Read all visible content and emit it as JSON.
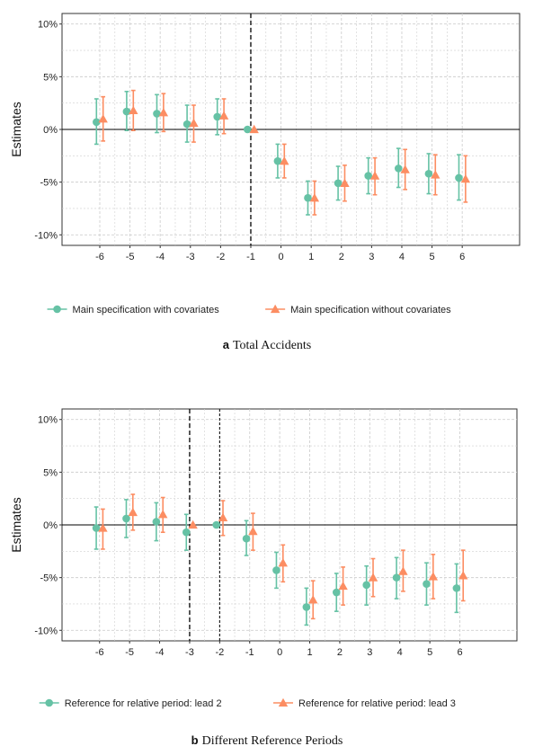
{
  "colors": {
    "series1": "#66c2a5",
    "series2": "#fc8d62",
    "grid": "#d0d0d0",
    "zero": "#000000",
    "reference": "#000000"
  },
  "chart_data": [
    {
      "type": "scatter",
      "panel_letter": "a",
      "caption": "Total Accidents",
      "ylabel": "Estimates",
      "xlabel": "",
      "x": [
        -6,
        -5,
        -4,
        -3,
        -2,
        -1,
        0,
        1,
        2,
        3,
        4,
        5,
        6
      ],
      "xlim": [
        -7.25,
        7.9
      ],
      "ylim": [
        -11,
        11
      ],
      "yticks": [
        -10,
        -5,
        0,
        5,
        10
      ],
      "ytick_labels": [
        "-10%",
        "-5%",
        "0%",
        "5%",
        "10%"
      ],
      "xtick_labels": [
        "-6",
        "-5",
        "-4",
        "-3",
        "-2",
        "-1",
        "0",
        "1",
        "2",
        "3",
        "4",
        "5",
        "6"
      ],
      "grid": true,
      "legend_position": "bottom",
      "reference_lines": [
        -1
      ],
      "series": [
        {
          "name": "Main specification with covariates",
          "marker": "circle",
          "values": [
            0.7,
            1.7,
            1.5,
            0.5,
            1.2,
            0,
            -3.0,
            -6.5,
            -5.1,
            -4.4,
            -3.7,
            -4.2,
            -4.6
          ],
          "lower": [
            -1.4,
            -0.1,
            -0.3,
            -1.2,
            -0.5,
            0,
            -4.6,
            -8.1,
            -6.7,
            -6.1,
            -5.5,
            -6.1,
            -6.7
          ],
          "upper": [
            2.9,
            3.6,
            3.3,
            2.3,
            2.9,
            0,
            -1.4,
            -4.9,
            -3.5,
            -2.7,
            -1.8,
            -2.3,
            -2.4
          ]
        },
        {
          "name": "Main specification without covariates",
          "marker": "triangle",
          "values": [
            1.0,
            1.8,
            1.6,
            0.6,
            1.3,
            0,
            -3.0,
            -6.5,
            -5.1,
            -4.4,
            -3.8,
            -4.3,
            -4.7
          ],
          "lower": [
            -1.1,
            -0.1,
            -0.2,
            -1.2,
            -0.4,
            0,
            -4.6,
            -8.1,
            -6.8,
            -6.2,
            -5.7,
            -6.2,
            -6.9
          ],
          "upper": [
            3.1,
            3.7,
            3.4,
            2.3,
            2.9,
            0,
            -1.4,
            -4.9,
            -3.4,
            -2.7,
            -1.9,
            -2.4,
            -2.5
          ]
        }
      ]
    },
    {
      "type": "scatter",
      "panel_letter": "b",
      "caption": "Different Reference Periods",
      "ylabel": "Estimates",
      "xlabel": "",
      "x": [
        -6,
        -5,
        -4,
        -3,
        -2,
        -1,
        0,
        1,
        2,
        3,
        4,
        5,
        6
      ],
      "xlim": [
        -7.25,
        7.9
      ],
      "ylim": [
        -11,
        11
      ],
      "yticks": [
        -10,
        -5,
        0,
        5,
        10
      ],
      "ytick_labels": [
        "-10%",
        "-5%",
        "0%",
        "5%",
        "10%"
      ],
      "xtick_labels": [
        "-6",
        "-5",
        "-4",
        "-3",
        "-2",
        "-1",
        "0",
        "1",
        "2",
        "3",
        "4",
        "5",
        "6"
      ],
      "grid": true,
      "legend_position": "bottom",
      "reference_lines": [
        -3,
        -2
      ],
      "series": [
        {
          "name": "Reference for relative period: lead 2",
          "marker": "circle",
          "values": [
            -0.3,
            0.6,
            0.3,
            -0.7,
            0,
            -1.3,
            -4.3,
            -7.8,
            -6.4,
            -5.7,
            -5.0,
            -5.6,
            -6.0
          ],
          "lower": [
            -2.3,
            -1.2,
            -1.5,
            -2.4,
            0,
            -2.9,
            -6.0,
            -9.5,
            -8.2,
            -7.6,
            -7.0,
            -7.6,
            -8.3
          ],
          "upper": [
            1.7,
            2.4,
            2.1,
            1.0,
            0,
            0.4,
            -2.6,
            -6.0,
            -4.6,
            -3.9,
            -3.1,
            -3.6,
            -3.7
          ]
        },
        {
          "name": "Reference for relative period: lead 3",
          "marker": "triangle",
          "values": [
            -0.3,
            1.2,
            1.0,
            0,
            0.7,
            -0.6,
            -3.6,
            -7.1,
            -5.8,
            -5.0,
            -4.4,
            -4.9,
            -4.8
          ],
          "lower": [
            -2.3,
            -0.5,
            -0.7,
            0,
            -1.0,
            -2.4,
            -5.4,
            -8.9,
            -7.6,
            -6.8,
            -6.3,
            -7.0,
            -7.2
          ],
          "upper": [
            1.5,
            2.9,
            2.6,
            0,
            2.3,
            1.1,
            -1.9,
            -5.3,
            -4.0,
            -3.2,
            -2.4,
            -2.8,
            -2.4
          ]
        }
      ]
    }
  ]
}
